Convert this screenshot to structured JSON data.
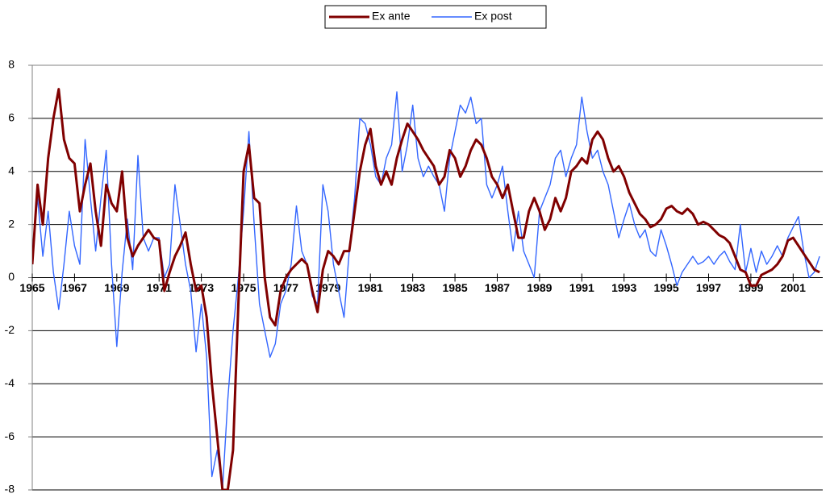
{
  "chart_data": {
    "type": "line",
    "x": [
      1965,
      1965.25,
      1965.5,
      1965.75,
      1966,
      1966.25,
      1966.5,
      1966.75,
      1967,
      1967.25,
      1967.5,
      1967.75,
      1968,
      1968.25,
      1968.5,
      1968.75,
      1969,
      1969.25,
      1969.5,
      1969.75,
      1970,
      1970.25,
      1970.5,
      1970.75,
      1971,
      1971.25,
      1971.5,
      1971.75,
      1972,
      1972.25,
      1972.5,
      1972.75,
      1973,
      1973.25,
      1973.5,
      1973.75,
      1974,
      1974.25,
      1974.5,
      1974.75,
      1975,
      1975.25,
      1975.5,
      1975.75,
      1976,
      1976.25,
      1976.5,
      1976.75,
      1977,
      1977.25,
      1977.5,
      1977.75,
      1978,
      1978.25,
      1978.5,
      1978.75,
      1979,
      1979.25,
      1979.5,
      1979.75,
      1980,
      1980.25,
      1980.5,
      1980.75,
      1981,
      1981.25,
      1981.5,
      1981.75,
      1982,
      1982.25,
      1982.5,
      1982.75,
      1983,
      1983.25,
      1983.5,
      1983.75,
      1984,
      1984.25,
      1984.5,
      1984.75,
      1985,
      1985.25,
      1985.5,
      1985.75,
      1986,
      1986.25,
      1986.5,
      1986.75,
      1987,
      1987.25,
      1987.5,
      1987.75,
      1988,
      1988.25,
      1988.5,
      1988.75,
      1989,
      1989.25,
      1989.5,
      1989.75,
      1990,
      1990.25,
      1990.5,
      1990.75,
      1991,
      1991.25,
      1991.5,
      1991.75,
      1992,
      1992.25,
      1992.5,
      1992.75,
      1993,
      1993.25,
      1993.5,
      1993.75,
      1994,
      1994.25,
      1994.5,
      1994.75,
      1995,
      1995.25,
      1995.5,
      1995.75,
      1996,
      1996.25,
      1996.5,
      1996.75,
      1997,
      1997.25,
      1997.5,
      1997.75,
      1998,
      1998.25,
      1998.5,
      1998.75,
      1999,
      1999.25,
      1999.5,
      1999.75,
      2000,
      2000.25,
      2000.5,
      2000.75,
      2001,
      2001.25,
      2001.5,
      2001.75,
      2002,
      2002.25
    ],
    "series": [
      {
        "name": "Ex ante",
        "color": "#800000",
        "values": [
          0.5,
          3.5,
          2,
          4.5,
          6,
          7.1,
          5.2,
          4.5,
          4.3,
          2.5,
          3.5,
          4.3,
          2.5,
          1.2,
          3.5,
          2.8,
          2.5,
          4,
          1.5,
          0.8,
          1.2,
          1.5,
          1.8,
          1.5,
          1.4,
          -0.5,
          0.2,
          0.8,
          1.2,
          1.7,
          0.5,
          -0.5,
          -0.3,
          -1.5,
          -4,
          -6,
          -8,
          -8,
          -6.5,
          -1,
          4,
          5,
          3,
          2.8,
          0,
          -1.5,
          -1.8,
          -0.5,
          0,
          0.3,
          0.5,
          0.7,
          0.5,
          -0.5,
          -1.3,
          0.3,
          1,
          0.8,
          0.5,
          1,
          1,
          2.5,
          4,
          5,
          5.6,
          4.2,
          3.5,
          4,
          3.5,
          4.5,
          5.2,
          5.8,
          5.5,
          5.2,
          4.8,
          4.5,
          4.2,
          3.5,
          3.8,
          4.8,
          4.5,
          3.8,
          4.2,
          4.8,
          5.2,
          5,
          4.5,
          3.8,
          3.5,
          3,
          3.5,
          2.5,
          1.5,
          1.5,
          2.5,
          3,
          2.5,
          1.8,
          2.2,
          3,
          2.5,
          3,
          4,
          4.2,
          4.5,
          4.3,
          5.2,
          5.5,
          5.2,
          4.5,
          4,
          4.2,
          3.8,
          3.2,
          2.8,
          2.4,
          2.2,
          1.9,
          2.0,
          2.2,
          2.6,
          2.7,
          2.5,
          2.4,
          2.6,
          2.4,
          2.0,
          2.1,
          2.0,
          1.8,
          1.6,
          1.5,
          1.3,
          0.8,
          0.3,
          0.2,
          -0.3,
          -0.3,
          0.1,
          0.2,
          0.3,
          0.5,
          0.8,
          1.4,
          1.5,
          1.2,
          0.9,
          0.6,
          0.3,
          0.2
        ]
      },
      {
        "name": "Ex post",
        "color": "#3366ff",
        "values": [
          1,
          3,
          0.8,
          2.5,
          0.2,
          -1.2,
          0.5,
          2.5,
          1.2,
          0.5,
          5.2,
          3,
          1,
          3,
          4.8,
          0.5,
          -2.6,
          0.2,
          2.2,
          0.3,
          4.6,
          1.5,
          1,
          1.5,
          1.5,
          0,
          0.5,
          3.5,
          2,
          0.5,
          -0.5,
          -2.8,
          -1,
          -3,
          -7.5,
          -6.5,
          -8,
          -4.6,
          -2,
          0,
          2.5,
          5.5,
          2,
          -1,
          -2,
          -3,
          -2.5,
          -1,
          -0.5,
          0.5,
          2.7,
          1,
          0.5,
          -0.7,
          -1,
          3.5,
          2.5,
          0.5,
          -0.5,
          -1.5,
          1,
          3,
          6,
          5.8,
          5,
          3.8,
          3.5,
          4.5,
          5,
          7,
          4,
          5,
          6.5,
          4.5,
          3.8,
          4.2,
          3.8,
          3.5,
          2.5,
          4.5,
          5.5,
          6.5,
          6.2,
          6.8,
          5.8,
          6,
          3.5,
          3,
          3.5,
          4.2,
          2.5,
          1,
          2.5,
          1,
          0.5,
          0,
          2.5,
          3,
          3.5,
          4.5,
          4.8,
          3.8,
          4.5,
          5,
          6.8,
          5.5,
          4.5,
          4.8,
          4,
          3.5,
          2.5,
          1.5,
          2.2,
          2.8,
          2.0,
          1.5,
          1.8,
          1.0,
          0.8,
          1.8,
          1.2,
          0.5,
          -0.3,
          0.2,
          0.5,
          0.8,
          0.5,
          0.6,
          0.8,
          0.5,
          0.8,
          1.0,
          0.6,
          0.3,
          2.0,
          0.2,
          1.1,
          0.2,
          1.0,
          0.5,
          0.8,
          1.2,
          0.8,
          1.5,
          1.9,
          2.3,
          1.0,
          0,
          0.2,
          0.8
        ]
      }
    ],
    "xlim": [
      1965,
      2002.4
    ],
    "xticks": [
      1965,
      1967,
      1969,
      1971,
      1973,
      1975,
      1977,
      1979,
      1981,
      1983,
      1985,
      1987,
      1989,
      1991,
      1993,
      1995,
      1997,
      1999,
      2001
    ],
    "ylim": [
      -8,
      8
    ],
    "yticks": [
      -8,
      -6,
      -4,
      -2,
      0,
      2,
      4,
      6,
      8
    ],
    "grid": true
  }
}
